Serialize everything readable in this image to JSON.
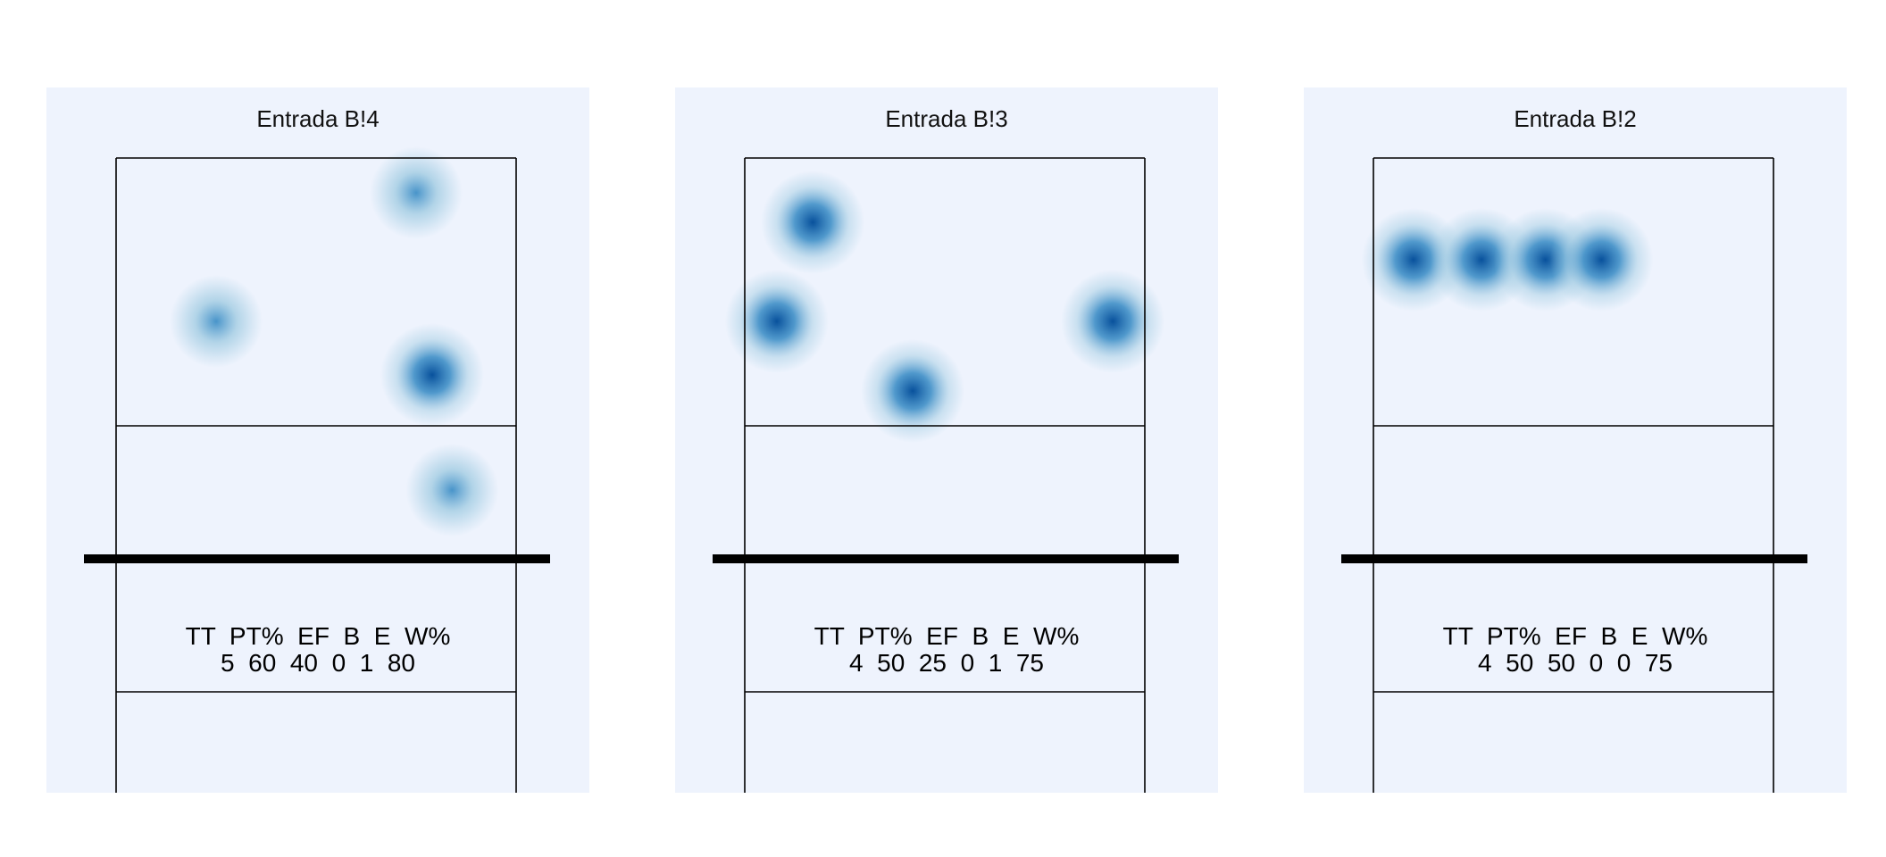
{
  "colors": {
    "panel_bg": "#eef3fd",
    "heat_low": "#9ecae1",
    "heat_mid": "#3f8fc7",
    "heat_high": "#08519c"
  },
  "chart_data": [
    {
      "type": "heatmap",
      "title": "Entrada B!4",
      "stats_header": [
        "TT",
        "PT%",
        "EF",
        "B",
        "E",
        "W%"
      ],
      "stats_values": [
        "5",
        "60",
        "40",
        "0",
        "1",
        "80"
      ],
      "points": [
        {
          "x": 0.75,
          "y": 0.13,
          "w": 1
        },
        {
          "x": 0.25,
          "y": 0.61,
          "w": 1
        },
        {
          "x": 0.79,
          "y": 0.81,
          "w": 2
        },
        {
          "x": 0.84,
          "y": 1.24,
          "w": 1
        }
      ]
    },
    {
      "type": "heatmap",
      "title": "Entrada B!3",
      "stats_header": [
        "TT",
        "PT%",
        "EF",
        "B",
        "E",
        "W%"
      ],
      "stats_values": [
        "4",
        "50",
        "25",
        "0",
        "1",
        "75"
      ],
      "points": [
        {
          "x": 0.17,
          "y": 0.24,
          "w": 1.6
        },
        {
          "x": 0.08,
          "y": 0.61,
          "w": 1.6
        },
        {
          "x": 0.92,
          "y": 0.61,
          "w": 1.6
        },
        {
          "x": 0.42,
          "y": 0.87,
          "w": 1.6
        }
      ]
    },
    {
      "type": "heatmap",
      "title": "Entrada B!2",
      "stats_header": [
        "TT",
        "PT%",
        "EF",
        "B",
        "E",
        "W%"
      ],
      "stats_values": [
        "4",
        "50",
        "50",
        "0",
        "0",
        "75"
      ],
      "points": [
        {
          "x": 0.1,
          "y": 0.38,
          "w": 1.6
        },
        {
          "x": 0.27,
          "y": 0.38,
          "w": 1.6
        },
        {
          "x": 0.43,
          "y": 0.38,
          "w": 1.6
        },
        {
          "x": 0.57,
          "y": 0.38,
          "w": 1.6
        }
      ]
    }
  ]
}
